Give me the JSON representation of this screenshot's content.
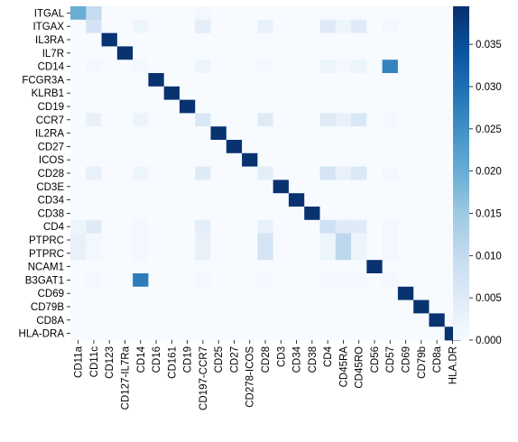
{
  "chart_data": {
    "type": "heatmap",
    "title": "",
    "xlabel": "",
    "ylabel": "",
    "rows": [
      "ITGAL",
      "ITGAX",
      "IL3RA",
      "IL7R",
      "CD14",
      "FCGR3A",
      "KLRB1",
      "CD19",
      "CCR7",
      "IL2RA",
      "CD27",
      "ICOS",
      "CD28",
      "CD3E",
      "CD34",
      "CD38",
      "CD4",
      "PTPRC",
      "PTPRC",
      "NCAM1",
      "B3GAT1",
      "CD69",
      "CD79B",
      "CD8A",
      "HLA-DRA"
    ],
    "columns": [
      "CD11a",
      "CD11c",
      "CD123",
      "CD127-IL7Ra",
      "CD14",
      "CD16",
      "CD161",
      "CD19",
      "CD197-CCR7",
      "CD25",
      "CD27",
      "CD278-ICOS",
      "CD28",
      "CD3",
      "CD34",
      "CD38",
      "CD4",
      "CD45RA",
      "CD45RO",
      "CD56",
      "CD57",
      "CD69",
      "CD79b",
      "CD8a",
      "HLA.DR"
    ],
    "values": [
      [
        0.02,
        0.01,
        0,
        0,
        0,
        0,
        0,
        0,
        0.001,
        0,
        0,
        0,
        0,
        0,
        0,
        0,
        0,
        0,
        0,
        0,
        0,
        0,
        0,
        0,
        0
      ],
      [
        0,
        0.007,
        0,
        0,
        0.002,
        0,
        0,
        0,
        0.004,
        0,
        0,
        0,
        0.003,
        0,
        0,
        0,
        0.005,
        0.002,
        0.005,
        0,
        0.001,
        0,
        0,
        0,
        0
      ],
      [
        0,
        0,
        0.039,
        0,
        0,
        0,
        0,
        0,
        0,
        0,
        0,
        0,
        0,
        0,
        0,
        0,
        0,
        0,
        0,
        0,
        0,
        0,
        0,
        0,
        0
      ],
      [
        0,
        0,
        0,
        0.039,
        0,
        0,
        0,
        0,
        0,
        0,
        0,
        0,
        0,
        0,
        0,
        0,
        0,
        0,
        0,
        0,
        0,
        0,
        0,
        0,
        0
      ],
      [
        0,
        0.001,
        0,
        0,
        0.001,
        0,
        0,
        0,
        0.002,
        0,
        0,
        0,
        0.001,
        0,
        0,
        0,
        0.002,
        0.001,
        0.002,
        0,
        0.027,
        0,
        0,
        0,
        0
      ],
      [
        0,
        0,
        0,
        0,
        0,
        0.039,
        0,
        0,
        0,
        0,
        0,
        0,
        0,
        0,
        0,
        0,
        0,
        0,
        0,
        0,
        0,
        0,
        0,
        0,
        0
      ],
      [
        0,
        0,
        0,
        0,
        0,
        0,
        0.039,
        0,
        0,
        0,
        0,
        0,
        0,
        0,
        0,
        0,
        0,
        0,
        0,
        0,
        0,
        0,
        0,
        0,
        0
      ],
      [
        0,
        0,
        0,
        0,
        0,
        0,
        0,
        0.039,
        0,
        0,
        0,
        0,
        0,
        0,
        0,
        0,
        0,
        0,
        0,
        0,
        0,
        0,
        0,
        0,
        0
      ],
      [
        0,
        0.003,
        0,
        0,
        0.002,
        0,
        0,
        0,
        0.006,
        0,
        0,
        0,
        0.005,
        0,
        0,
        0,
        0.005,
        0.003,
        0.006,
        0,
        0.001,
        0,
        0,
        0,
        0
      ],
      [
        0,
        0,
        0,
        0,
        0,
        0,
        0,
        0,
        0,
        0.039,
        0,
        0,
        0,
        0,
        0,
        0,
        0,
        0,
        0,
        0,
        0,
        0,
        0,
        0,
        0
      ],
      [
        0,
        0,
        0,
        0,
        0,
        0,
        0,
        0,
        0,
        0,
        0.039,
        0,
        0,
        0,
        0,
        0,
        0,
        0,
        0,
        0,
        0,
        0,
        0,
        0,
        0
      ],
      [
        0,
        0,
        0,
        0,
        0,
        0,
        0,
        0,
        0,
        0,
        0,
        0.039,
        0,
        0,
        0,
        0,
        0,
        0,
        0,
        0,
        0,
        0,
        0,
        0,
        0
      ],
      [
        0,
        0.003,
        0,
        0,
        0.002,
        0,
        0,
        0,
        0.005,
        0,
        0,
        0,
        0.004,
        0,
        0,
        0,
        0.007,
        0.003,
        0.006,
        0,
        0.001,
        0,
        0,
        0,
        0
      ],
      [
        0,
        0,
        0,
        0,
        0,
        0,
        0,
        0,
        0,
        0,
        0,
        0,
        0,
        0.039,
        0,
        0,
        0,
        0,
        0,
        0,
        0,
        0,
        0,
        0,
        0
      ],
      [
        0,
        0,
        0,
        0,
        0,
        0,
        0,
        0,
        0,
        0,
        0,
        0,
        0,
        0,
        0.039,
        0,
        0,
        0,
        0,
        0,
        0,
        0,
        0,
        0,
        0
      ],
      [
        0,
        0,
        0,
        0,
        0,
        0,
        0,
        0,
        0,
        0,
        0,
        0,
        0,
        0,
        0,
        0.039,
        0,
        0,
        0,
        0,
        0,
        0,
        0,
        0,
        0
      ],
      [
        0.002,
        0.005,
        0,
        0,
        0.001,
        0,
        0,
        0,
        0.004,
        0,
        0,
        0,
        0.003,
        0,
        0,
        0,
        0.008,
        0.005,
        0.005,
        0,
        0.001,
        0,
        0,
        0,
        0
      ],
      [
        0.003,
        0.001,
        0,
        0,
        0.001,
        0,
        0,
        0,
        0.003,
        0,
        0,
        0,
        0.007,
        0,
        0,
        0,
        0.002,
        0.011,
        0.002,
        0,
        0.001,
        0,
        0,
        0,
        0
      ],
      [
        0.003,
        0.001,
        0,
        0,
        0.001,
        0,
        0,
        0,
        0.003,
        0,
        0,
        0,
        0.007,
        0,
        0,
        0,
        0.002,
        0.011,
        0.002,
        0,
        0.001,
        0,
        0,
        0,
        0
      ],
      [
        0,
        0,
        0,
        0,
        0,
        0,
        0,
        0,
        0,
        0,
        0,
        0,
        0,
        0,
        0,
        0,
        0,
        0,
        0,
        0.039,
        0,
        0,
        0,
        0,
        0
      ],
      [
        0,
        0.001,
        0,
        0,
        0.028,
        0,
        0,
        0,
        0.001,
        0,
        0,
        0,
        0.001,
        0,
        0,
        0,
        0.001,
        0.001,
        0.001,
        0,
        0.001,
        0,
        0,
        0,
        0
      ],
      [
        0,
        0,
        0,
        0,
        0,
        0,
        0,
        0,
        0,
        0,
        0,
        0,
        0,
        0,
        0,
        0,
        0,
        0,
        0,
        0,
        0,
        0.039,
        0,
        0,
        0
      ],
      [
        0,
        0,
        0,
        0,
        0,
        0,
        0,
        0,
        0,
        0,
        0,
        0,
        0,
        0,
        0,
        0,
        0,
        0,
        0,
        0,
        0,
        0,
        0.039,
        0,
        0
      ],
      [
        0,
        0,
        0,
        0,
        0,
        0,
        0,
        0,
        0,
        0,
        0,
        0,
        0,
        0,
        0,
        0,
        0,
        0,
        0,
        0,
        0,
        0,
        0,
        0.039,
        0
      ],
      [
        0,
        0,
        0,
        0,
        0,
        0,
        0,
        0,
        0,
        0,
        0,
        0,
        0,
        0,
        0,
        0,
        0,
        0,
        0,
        0,
        0,
        0,
        0,
        0,
        0.039
      ]
    ],
    "colorscale": {
      "name": "Blues",
      "min": 0,
      "max": 0.0395,
      "ticks": [
        "0.000",
        "0.005",
        "0.010",
        "0.015",
        "0.020",
        "0.025",
        "0.030",
        "0.035"
      ],
      "stops": [
        "#f7fbff",
        "#deebf7",
        "#c6dbef",
        "#9ecae1",
        "#6baed6",
        "#4292c6",
        "#2171b5",
        "#08519c",
        "#08306b"
      ]
    },
    "grid": false,
    "colorbar_position": "right"
  }
}
